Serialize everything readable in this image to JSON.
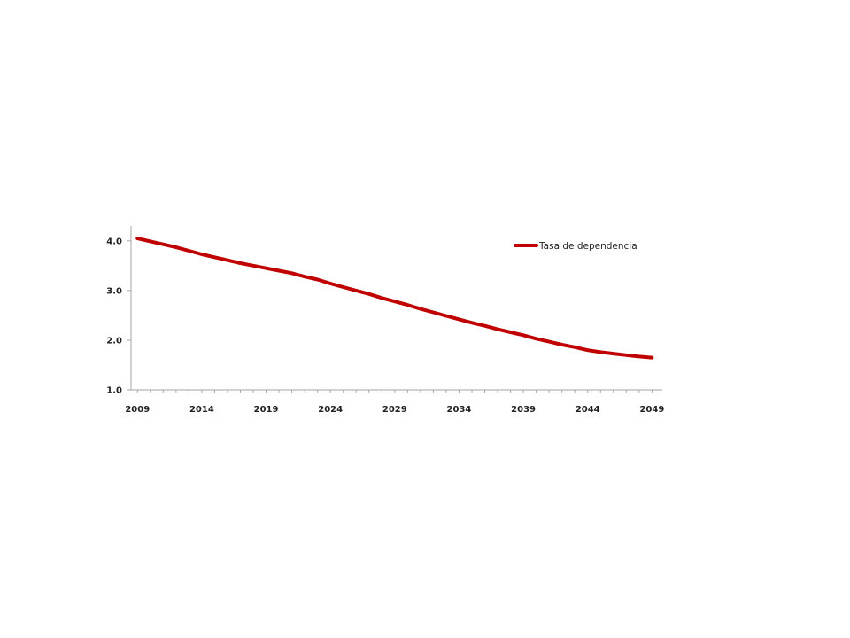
{
  "chart_data": {
    "type": "line",
    "title": "",
    "xlabel": "",
    "ylabel": "",
    "x": [
      2009,
      2010,
      2011,
      2012,
      2013,
      2014,
      2015,
      2016,
      2017,
      2018,
      2019,
      2020,
      2021,
      2022,
      2023,
      2024,
      2025,
      2026,
      2027,
      2028,
      2029,
      2030,
      2031,
      2032,
      2033,
      2034,
      2035,
      2036,
      2037,
      2038,
      2039,
      2040,
      2041,
      2042,
      2043,
      2044,
      2045,
      2046,
      2047,
      2048,
      2049
    ],
    "series": [
      {
        "name": "Tasa de dependencia",
        "color": "#c00000",
        "values": [
          4.05,
          3.99,
          3.93,
          3.87,
          3.8,
          3.73,
          3.67,
          3.61,
          3.55,
          3.5,
          3.45,
          3.4,
          3.35,
          3.28,
          3.22,
          3.14,
          3.07,
          3.0,
          2.93,
          2.85,
          2.78,
          2.71,
          2.63,
          2.56,
          2.49,
          2.42,
          2.35,
          2.29,
          2.22,
          2.16,
          2.1,
          2.03,
          1.97,
          1.91,
          1.86,
          1.8,
          1.76,
          1.73,
          1.7,
          1.67,
          1.65
        ]
      }
    ],
    "ylim": [
      1.0,
      4.3
    ],
    "xlim": [
      2008.5,
      2049.8
    ],
    "y_ticks": [
      "1.0",
      "2.0",
      "3.0",
      "4.0"
    ],
    "x_ticks": [
      "2009",
      "2014",
      "2019",
      "2024",
      "2029",
      "2034",
      "2039",
      "2044",
      "2049"
    ],
    "grid": false,
    "legend_position": "top-right"
  },
  "colors": {
    "axis": "#a6a6a6",
    "line": "#c00000"
  }
}
